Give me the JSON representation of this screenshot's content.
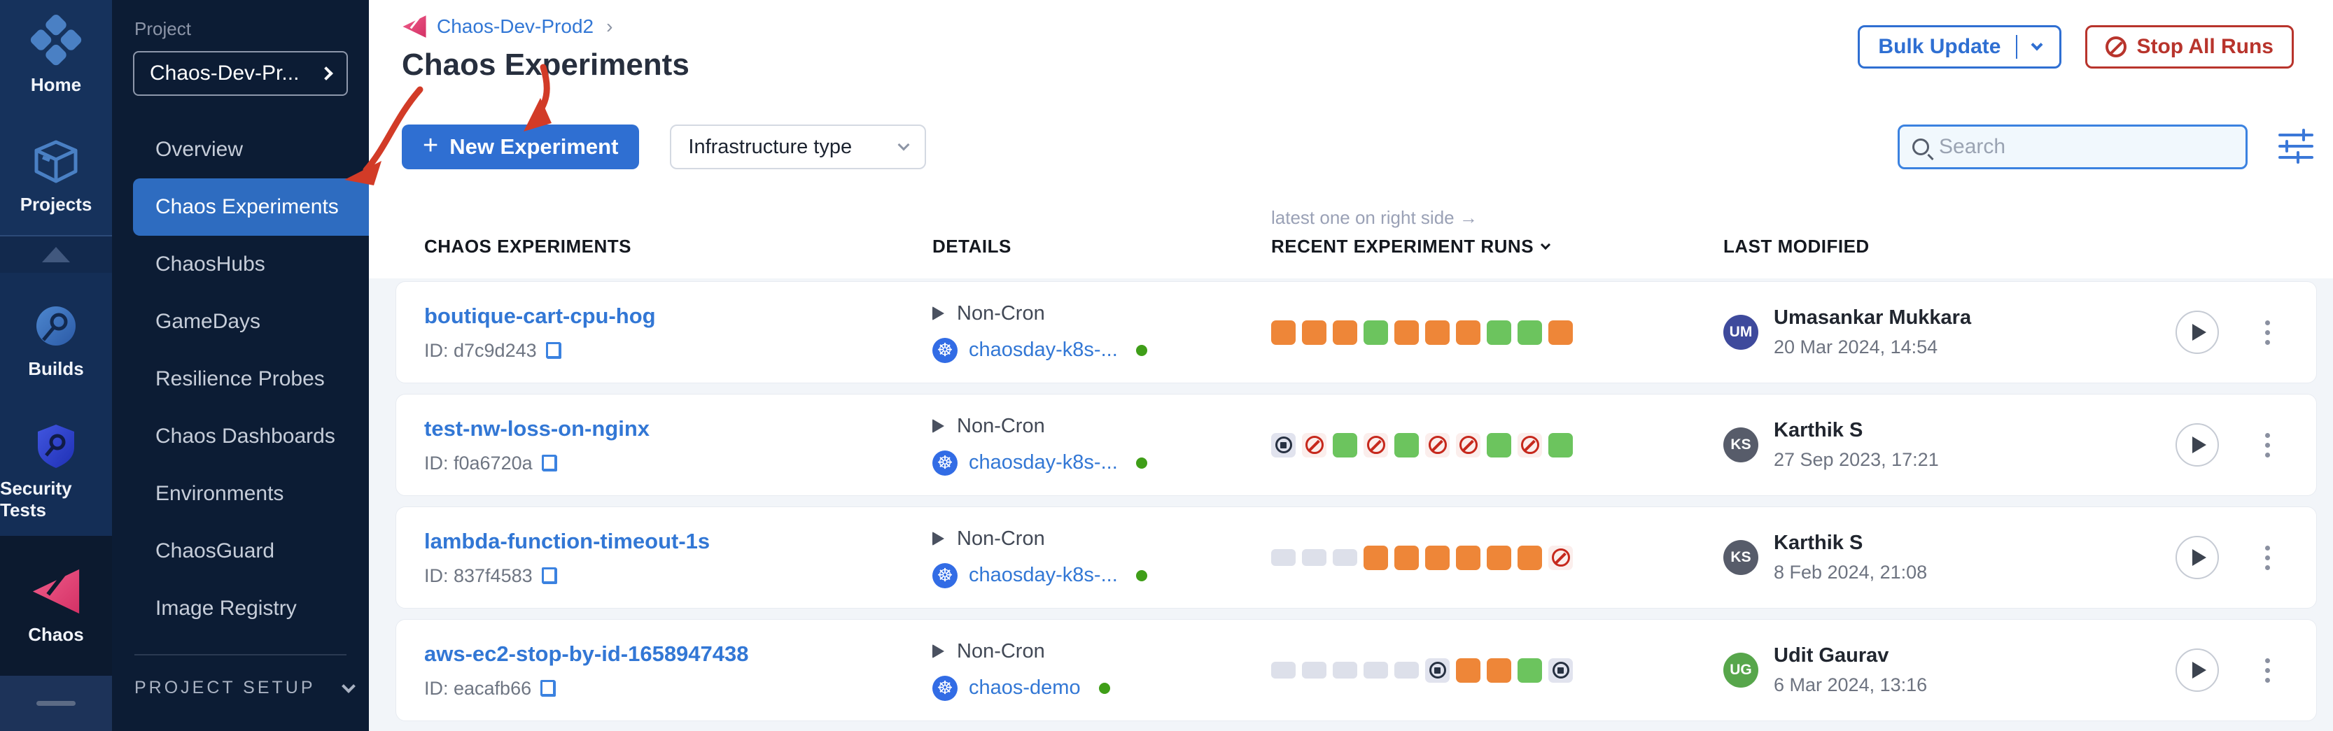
{
  "nav_rail": {
    "items": [
      {
        "label": "Home",
        "icon": "home-icon"
      },
      {
        "label": "Projects",
        "icon": "projects-icon"
      },
      {
        "label": "Builds",
        "icon": "builds-icon"
      },
      {
        "label": "Security Tests",
        "icon": "security-tests-icon"
      },
      {
        "label": "Chaos",
        "icon": "chaos-icon"
      }
    ]
  },
  "sidebar": {
    "project_label": "Project",
    "project_name": "Chaos-Dev-Pr...",
    "items": [
      "Overview",
      "Chaos Experiments",
      "ChaosHubs",
      "GameDays",
      "Resilience Probes",
      "Chaos Dashboards",
      "Environments",
      "ChaosGuard",
      "Image Registry"
    ],
    "active_item": "Chaos Experiments",
    "setup_label": "PROJECT SETUP"
  },
  "header": {
    "breadcrumb": "Chaos-Dev-Prod2",
    "breadcrumb_sep": "›",
    "title": "Chaos Experiments",
    "bulk_update_label": "Bulk Update",
    "stop_all_label": "Stop All Runs"
  },
  "toolbar": {
    "new_experiment_label": "New Experiment",
    "plus_glyph": "+",
    "infrastructure_filter_label": "Infrastructure type",
    "search_placeholder": "Search"
  },
  "table": {
    "hint": "latest one on right side →",
    "columns": [
      "CHAOS EXPERIMENTS",
      "DETAILS",
      "RECENT EXPERIMENT RUNS",
      "LAST MODIFIED"
    ],
    "k8s_glyph": "☸",
    "rows": [
      {
        "name": "boutique-cart-cpu-hog",
        "id_label": "ID: d7c9d243",
        "schedule": "Non-Cron",
        "infra": "chaosday-k8s-...",
        "runs": [
          "orange",
          "orange",
          "orange",
          "green",
          "orange",
          "orange",
          "orange",
          "green",
          "green",
          "orange"
        ],
        "modified_by": "Umasankar Mukkara",
        "initials": "UM",
        "avatar_color": "#3e4a9c",
        "date": "20 Mar 2024, 14:54"
      },
      {
        "name": "test-nw-loss-on-nginx",
        "id_label": "ID: f0a6720a",
        "schedule": "Non-Cron",
        "infra": "chaosday-k8s-...",
        "runs": [
          "stopped",
          "failed",
          "green",
          "failed",
          "green",
          "failed",
          "failed",
          "green",
          "failed",
          "green"
        ],
        "modified_by": "Karthik S",
        "initials": "KS",
        "avatar_color": "#575c6a",
        "date": "27 Sep 2023, 17:21"
      },
      {
        "name": "lambda-function-timeout-1s",
        "id_label": "ID: 837f4583",
        "schedule": "Non-Cron",
        "infra": "chaosday-k8s-...",
        "runs": [
          "empty",
          "empty",
          "empty",
          "orange",
          "orange",
          "orange",
          "orange",
          "orange",
          "orange",
          "failed"
        ],
        "modified_by": "Karthik S",
        "initials": "KS",
        "avatar_color": "#575c6a",
        "date": "8 Feb 2024, 21:08"
      },
      {
        "name": "aws-ec2-stop-by-id-1658947438",
        "id_label": "ID: eacafb66",
        "schedule": "Non-Cron",
        "infra": "chaos-demo",
        "runs": [
          "empty",
          "empty",
          "empty",
          "empty",
          "empty",
          "stopped",
          "orange",
          "orange",
          "green",
          "stopped"
        ],
        "modified_by": "Udit Gaurav",
        "initials": "UG",
        "avatar_color": "#57a64b",
        "date": "6 Mar 2024, 13:16"
      }
    ]
  },
  "colors": {
    "accent_blue": "#2f6fd2",
    "link_blue": "#3277d5",
    "danger_red": "#b8342c",
    "active_menu": "#2e6cc0",
    "run_orange": "#ee8638",
    "run_green": "#6cc45e",
    "run_failed_red": "#c6281c",
    "run_stopped_dark": "#273142",
    "run_empty_gray": "#dde0ea",
    "annotation_red": "#d23b27",
    "k8s_blue": "#326ce5",
    "status_dot_green": "#3f9e18"
  }
}
